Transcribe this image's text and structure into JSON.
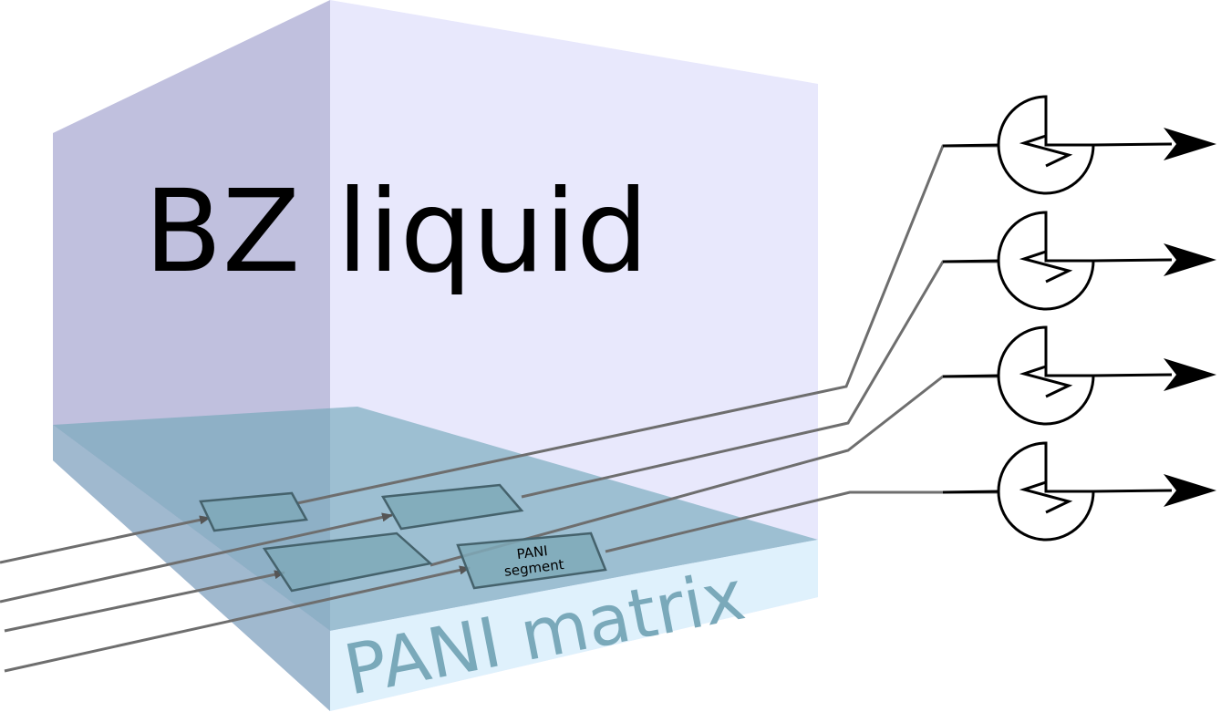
{
  "labels": {
    "liquid": "BZ liquid",
    "matrix": "PANI matrix",
    "segment_line1": "PANI",
    "segment_line2": "segment"
  },
  "colors": {
    "liquid_left": "#c0c0de",
    "liquid_front": "#e8e8fc",
    "matrix_top": "#6fa6b8",
    "matrix_left": "#9ab7cc",
    "matrix_front": "#dff1fc",
    "matrix_text": "#7aa9ba",
    "segment_fill": "#7fa9b8",
    "segment_stroke": "#45626c",
    "wire": "#6e6e6e",
    "component": "#000000"
  },
  "segment_count": 4,
  "input_count": 4,
  "output_count": 4
}
